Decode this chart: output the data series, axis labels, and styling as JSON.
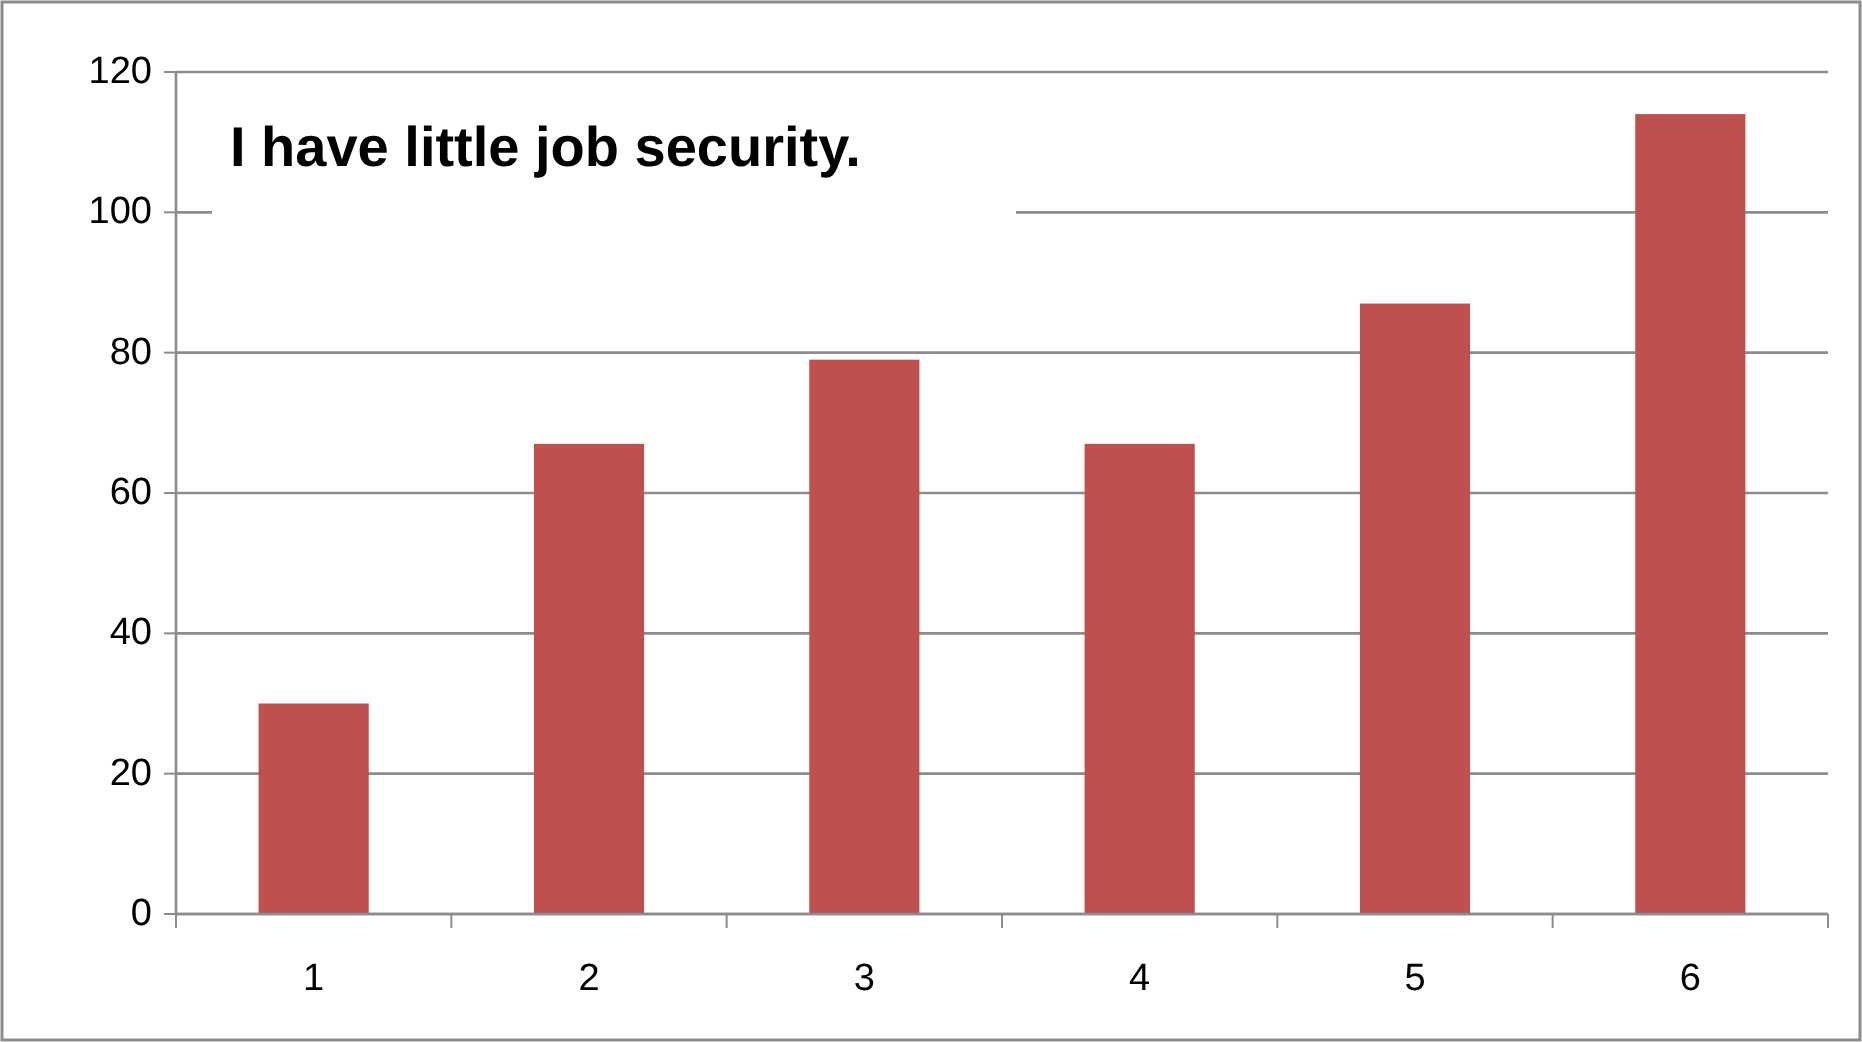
{
  "chart_data": {
    "type": "bar",
    "title": "I have little job security.",
    "categories": [
      "1",
      "2",
      "3",
      "4",
      "5",
      "6"
    ],
    "values": [
      30,
      67,
      79,
      67,
      87,
      114
    ],
    "color": "#c0504d",
    "ylim": [
      0,
      120
    ],
    "yticks": [
      0,
      20,
      40,
      60,
      80,
      100,
      120
    ],
    "grid": "y"
  }
}
